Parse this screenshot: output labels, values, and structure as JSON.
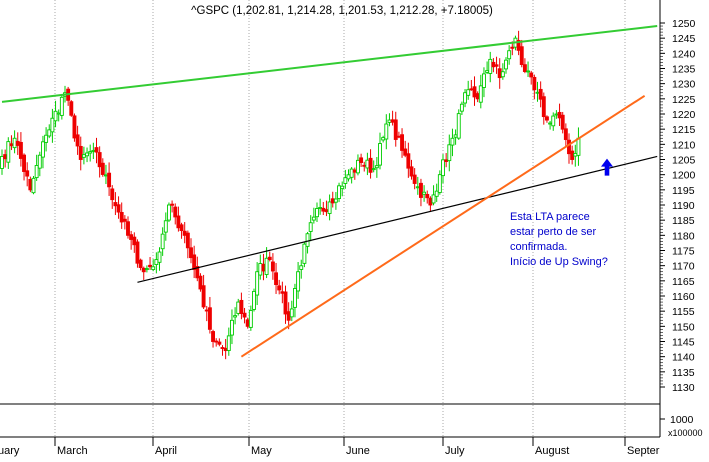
{
  "chart_data": {
    "type": "candlestick",
    "title": "^GSPC (1,202.81, 1,214.28, 1,201.53, 1,212.28, +7.18005)",
    "x_axis": {
      "labels": [
        "uary",
        "March",
        "April",
        "May",
        "June",
        "July",
        "August",
        "Septer"
      ]
    },
    "price_axis": {
      "ylim": [
        1127,
        1255
      ],
      "ticks": [
        1250,
        1245,
        1240,
        1235,
        1230,
        1225,
        1220,
        1215,
        1210,
        1205,
        1200,
        1195,
        1190,
        1185,
        1180,
        1175,
        1170,
        1165,
        1160,
        1155,
        1150,
        1145,
        1140,
        1135,
        1130
      ]
    },
    "volume_axis": {
      "ticks": [
        "1000"
      ],
      "unit_label": "x100000"
    },
    "grid": true,
    "colors": {
      "up": "#00cc00",
      "down": "#ee0000",
      "resistance": "#33cc33",
      "support_lta": "#000000",
      "uptrend": "#ff6a1a",
      "annotation": "#0000cc",
      "grid": "#aaaaaa"
    },
    "series": {
      "start": [
        1202,
        1206
      ],
      "legs": [
        {
          "to": 1212,
          "n": 4
        },
        {
          "to": 1195,
          "n": 5
        },
        {
          "to": 1213,
          "n": 5
        },
        {
          "to": 1227,
          "n": 6
        },
        {
          "to": 1205,
          "n": 5
        },
        {
          "to": 1208,
          "n": 4
        },
        {
          "to": 1196,
          "n": 5
        },
        {
          "to": 1180,
          "n": 6
        },
        {
          "to": 1168,
          "n": 5
        },
        {
          "to": 1172,
          "n": 4
        },
        {
          "to": 1190,
          "n": 4
        },
        {
          "to": 1180,
          "n": 5
        },
        {
          "to": 1166,
          "n": 4
        },
        {
          "to": 1145,
          "n": 5
        },
        {
          "to": 1142,
          "n": 4
        },
        {
          "to": 1158,
          "n": 4
        },
        {
          "to": 1150,
          "n": 3
        },
        {
          "to": 1168,
          "n": 3
        },
        {
          "to": 1172,
          "n": 4
        },
        {
          "to": 1162,
          "n": 3
        },
        {
          "to": 1152,
          "n": 3
        },
        {
          "to": 1168,
          "n": 3
        },
        {
          "to": 1186,
          "n": 5
        },
        {
          "to": 1191,
          "n": 5
        },
        {
          "to": 1199,
          "n": 5
        },
        {
          "to": 1204,
          "n": 5
        },
        {
          "to": 1202,
          "n": 4
        },
        {
          "to": 1218,
          "n": 5
        },
        {
          "to": 1208,
          "n": 4
        },
        {
          "to": 1196,
          "n": 5
        },
        {
          "to": 1190,
          "n": 4
        },
        {
          "to": 1200,
          "n": 3
        },
        {
          "to": 1212,
          "n": 4
        },
        {
          "to": 1228,
          "n": 5
        },
        {
          "to": 1225,
          "n": 3
        },
        {
          "to": 1238,
          "n": 4
        },
        {
          "to": 1232,
          "n": 3
        },
        {
          "to": 1245,
          "n": 5
        },
        {
          "to": 1234,
          "n": 3
        },
        {
          "to": 1228,
          "n": 3
        },
        {
          "to": 1218,
          "n": 4
        },
        {
          "to": 1220,
          "n": 3
        },
        {
          "to": 1215,
          "n": 2
        },
        {
          "to": 1205,
          "n": 3
        },
        {
          "to": 1212,
          "n": 2
        }
      ]
    },
    "trendlines": [
      {
        "name": "resistance",
        "from": {
          "bar": 0,
          "price": 1224
        },
        "to": {
          "bar": 208,
          "price": 1249
        }
      },
      {
        "name": "support_lta",
        "from": {
          "bar": 43,
          "price": 1164.5
        },
        "to": {
          "bar": 208,
          "price": 1206
        }
      },
      {
        "name": "uptrend",
        "from": {
          "bar": 76,
          "price": 1140
        },
        "to": {
          "bar": 204,
          "price": 1226
        }
      }
    ],
    "annotation": {
      "lines": [
        "Esta LTA parece",
        "estar perto de ser",
        "confirmada.",
        "Início de Up Swing?"
      ]
    },
    "arrow": {
      "direction": "up",
      "price": 1201
    }
  }
}
